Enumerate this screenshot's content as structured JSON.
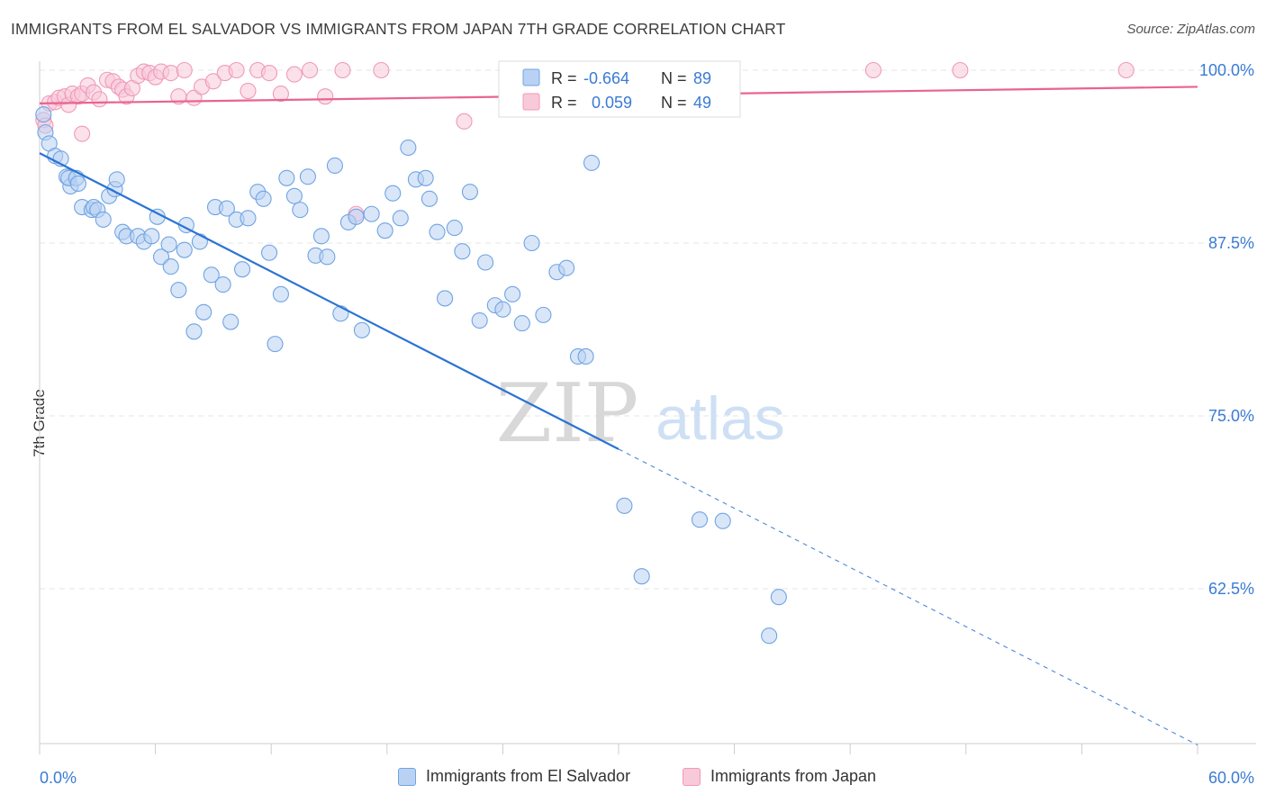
{
  "header": {
    "title": "IMMIGRANTS FROM EL SALVADOR VS IMMIGRANTS FROM JAPAN 7TH GRADE CORRELATION CHART",
    "source": "Source: ZipAtlas.com"
  },
  "watermark": {
    "zip": "ZIP",
    "atlas": "atlas"
  },
  "colors": {
    "blue": "#6fa4e3",
    "blue_fill": "#b9d2f3",
    "blue_line": "#2a73d4",
    "pink": "#f09ab8",
    "pink_fill": "#f8c9d9",
    "pink_line": "#e8648e",
    "tick_text": "#3a7bd5"
  },
  "legend_top": {
    "rows": [
      {
        "r_label": "R = ",
        "r_value": "-0.664",
        "n_label": "N = ",
        "n_value": "89"
      },
      {
        "r_label": "R = ",
        "r_value": "0.059",
        "n_label": "N = ",
        "n_value": "49"
      }
    ]
  },
  "legend_bottom": {
    "items": [
      {
        "label": "Immigrants from El Salvador"
      },
      {
        "label": "Immigrants from Japan"
      }
    ]
  },
  "chart_data": {
    "type": "scatter",
    "title": "IMMIGRANTS FROM EL SALVADOR VS IMMIGRANTS FROM JAPAN 7TH GRADE CORRELATION CHART",
    "xlabel": "",
    "ylabel": "7th Grade",
    "xlim": [
      0,
      60
    ],
    "ylim": [
      53.0,
      101.5
    ],
    "x_tick_labels": [
      "0.0%",
      "60.0%"
    ],
    "y_ticks": [
      62.5,
      75.0,
      87.5,
      100.0
    ],
    "y_tick_labels": [
      "62.5%",
      "75.0%",
      "87.5%",
      "100.0%"
    ],
    "grid": true,
    "legend_position": "top-center",
    "series": [
      {
        "name": "Immigrants from El Salvador",
        "r": -0.664,
        "n": 89,
        "trend": {
          "x0": 0.0,
          "y0": 94.0,
          "x1": 30.0,
          "y1": 72.6,
          "x_dash_end": 60.0,
          "y_dash_end": 51.2
        },
        "points": [
          [
            0.2,
            96.8
          ],
          [
            0.3,
            95.5
          ],
          [
            0.5,
            94.7
          ],
          [
            0.8,
            93.8
          ],
          [
            1.1,
            93.6
          ],
          [
            1.4,
            92.3
          ],
          [
            1.6,
            91.6
          ],
          [
            1.5,
            92.2
          ],
          [
            1.9,
            92.2
          ],
          [
            2.0,
            91.8
          ],
          [
            2.2,
            90.1
          ],
          [
            2.7,
            89.9
          ],
          [
            2.8,
            90.1
          ],
          [
            3.0,
            89.9
          ],
          [
            3.3,
            89.2
          ],
          [
            3.6,
            90.9
          ],
          [
            3.9,
            91.4
          ],
          [
            4.0,
            92.1
          ],
          [
            4.3,
            88.3
          ],
          [
            4.5,
            88.0
          ],
          [
            5.1,
            88.0
          ],
          [
            5.4,
            87.6
          ],
          [
            5.8,
            88.0
          ],
          [
            6.1,
            89.4
          ],
          [
            6.3,
            86.5
          ],
          [
            6.7,
            87.4
          ],
          [
            6.8,
            85.8
          ],
          [
            7.2,
            84.1
          ],
          [
            7.5,
            87.0
          ],
          [
            7.6,
            88.8
          ],
          [
            8.0,
            81.1
          ],
          [
            8.3,
            87.6
          ],
          [
            8.5,
            82.5
          ],
          [
            8.9,
            85.2
          ],
          [
            9.1,
            90.1
          ],
          [
            9.5,
            84.5
          ],
          [
            9.7,
            90.0
          ],
          [
            9.9,
            81.8
          ],
          [
            10.2,
            89.2
          ],
          [
            10.5,
            85.6
          ],
          [
            10.8,
            89.3
          ],
          [
            11.3,
            91.2
          ],
          [
            11.6,
            90.7
          ],
          [
            11.9,
            86.8
          ],
          [
            12.2,
            80.2
          ],
          [
            12.5,
            83.8
          ],
          [
            12.8,
            92.2
          ],
          [
            13.2,
            90.9
          ],
          [
            13.5,
            89.9
          ],
          [
            13.9,
            92.3
          ],
          [
            14.3,
            86.6
          ],
          [
            14.6,
            88.0
          ],
          [
            14.9,
            86.5
          ],
          [
            15.3,
            93.1
          ],
          [
            15.6,
            82.4
          ],
          [
            16.0,
            89.0
          ],
          [
            16.4,
            89.4
          ],
          [
            16.7,
            81.2
          ],
          [
            17.2,
            89.6
          ],
          [
            17.9,
            88.4
          ],
          [
            18.3,
            91.1
          ],
          [
            18.7,
            89.3
          ],
          [
            19.1,
            94.4
          ],
          [
            19.5,
            92.1
          ],
          [
            20.0,
            92.2
          ],
          [
            20.2,
            90.7
          ],
          [
            20.6,
            88.3
          ],
          [
            21.0,
            83.5
          ],
          [
            21.5,
            88.6
          ],
          [
            21.9,
            86.9
          ],
          [
            22.3,
            91.2
          ],
          [
            22.8,
            81.9
          ],
          [
            23.1,
            86.1
          ],
          [
            23.6,
            83.0
          ],
          [
            24.0,
            82.7
          ],
          [
            24.5,
            83.8
          ],
          [
            25.0,
            81.7
          ],
          [
            25.5,
            87.5
          ],
          [
            26.1,
            82.3
          ],
          [
            26.8,
            85.4
          ],
          [
            27.3,
            85.7
          ],
          [
            27.9,
            79.3
          ],
          [
            28.3,
            79.3
          ],
          [
            28.6,
            93.3
          ],
          [
            30.3,
            68.5
          ],
          [
            31.2,
            63.4
          ],
          [
            34.2,
            67.5
          ],
          [
            35.4,
            67.4
          ],
          [
            37.8,
            59.1
          ],
          [
            38.3,
            61.9
          ]
        ]
      },
      {
        "name": "Immigrants from Japan",
        "r": 0.059,
        "n": 49,
        "trend": {
          "x0": 0.0,
          "y0": 97.6,
          "x1": 60.0,
          "y1": 98.8
        },
        "points": [
          [
            0.2,
            96.4
          ],
          [
            0.3,
            96.0
          ],
          [
            0.5,
            97.6
          ],
          [
            0.8,
            97.7
          ],
          [
            1.0,
            98.0
          ],
          [
            1.3,
            98.1
          ],
          [
            1.5,
            97.5
          ],
          [
            1.7,
            98.3
          ],
          [
            2.0,
            98.1
          ],
          [
            2.2,
            98.3
          ],
          [
            2.5,
            98.9
          ],
          [
            2.8,
            98.4
          ],
          [
            3.1,
            97.9
          ],
          [
            3.5,
            99.3
          ],
          [
            3.8,
            99.2
          ],
          [
            4.1,
            98.8
          ],
          [
            4.3,
            98.6
          ],
          [
            4.5,
            98.1
          ],
          [
            4.8,
            98.7
          ],
          [
            5.1,
            99.6
          ],
          [
            5.4,
            99.9
          ],
          [
            5.7,
            99.8
          ],
          [
            6.0,
            99.5
          ],
          [
            6.3,
            99.9
          ],
          [
            6.8,
            99.8
          ],
          [
            7.2,
            98.1
          ],
          [
            7.5,
            100.0
          ],
          [
            8.0,
            98.0
          ],
          [
            8.4,
            98.8
          ],
          [
            9.0,
            99.2
          ],
          [
            9.6,
            99.8
          ],
          [
            10.2,
            100.0
          ],
          [
            10.8,
            98.5
          ],
          [
            11.3,
            100.0
          ],
          [
            11.9,
            99.8
          ],
          [
            12.5,
            98.3
          ],
          [
            13.2,
            99.7
          ],
          [
            14.0,
            100.0
          ],
          [
            14.8,
            98.1
          ],
          [
            15.7,
            100.0
          ],
          [
            16.4,
            89.6
          ],
          [
            17.7,
            100.0
          ],
          [
            22.0,
            96.3
          ],
          [
            28.3,
            100.0
          ],
          [
            32.1,
            100.0
          ],
          [
            43.2,
            100.0
          ],
          [
            47.7,
            100.0
          ],
          [
            56.3,
            100.0
          ],
          [
            2.2,
            95.4
          ]
        ]
      }
    ]
  }
}
